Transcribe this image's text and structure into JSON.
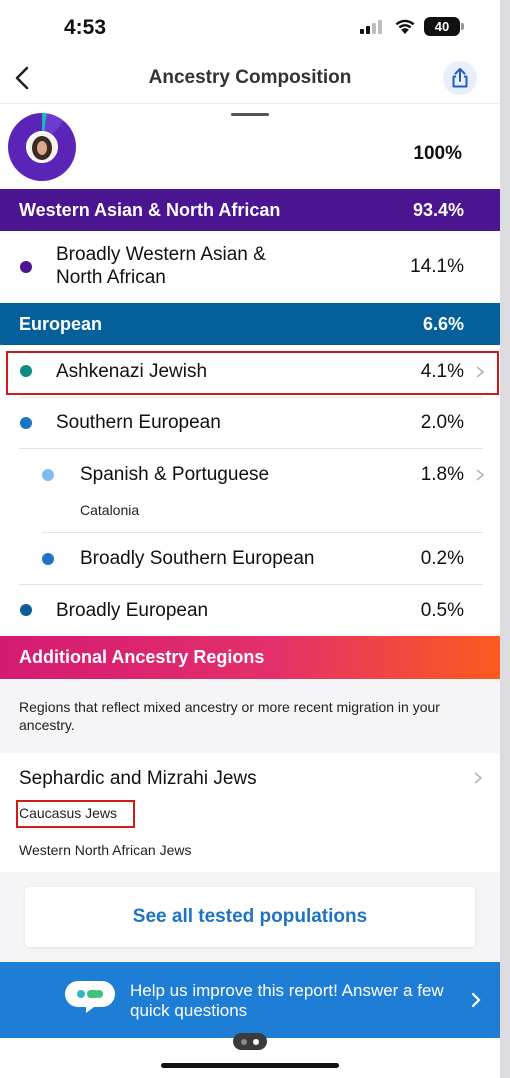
{
  "status": {
    "time": "4:53",
    "battery": "40"
  },
  "nav": {
    "title": "Ancestry Composition"
  },
  "total": {
    "percent": "100%"
  },
  "regions": {
    "wana": {
      "label": "Western Asian & North African",
      "percent": "93.4%"
    },
    "european": {
      "label": "European",
      "percent": "6.6%"
    },
    "additional": {
      "label": "Additional Ancestry Regions"
    }
  },
  "rows": {
    "broadly_wana": {
      "name_line1": "Broadly Western Asian &",
      "name_line2": "North African",
      "percent": "14.1%"
    },
    "ashkenazi": {
      "name": "Ashkenazi Jewish",
      "percent": "4.1%"
    },
    "southern_eu": {
      "name": "Southern European",
      "percent": "2.0%"
    },
    "spanish": {
      "name": "Spanish & Portuguese",
      "percent": "1.8%",
      "sub": "Catalonia"
    },
    "broadly_southern": {
      "name": "Broadly Southern European",
      "percent": "0.2%"
    },
    "broadly_eu": {
      "name": "Broadly European",
      "percent": "0.5%"
    }
  },
  "additional": {
    "description": "Regions that reflect mixed ancestry or more recent migration in your ancestry.",
    "group_title": "Sephardic and Mizrahi Jews",
    "items": [
      "Caucasus Jews",
      "Western North African Jews"
    ]
  },
  "see_all_label": "See all tested populations",
  "help": {
    "text": "Help us improve this report! Answer a few quick questions"
  },
  "colors": {
    "wana_header": "#4b1490",
    "european_header": "#045f9a",
    "dot_wana": "#4b1490",
    "dot_ashkenazi": "#0e8a80",
    "dot_southern": "#1f73c4",
    "dot_spanish": "#7fbbef",
    "dot_broadly_eu": "#0a5e9c",
    "link": "#1f73c4",
    "help_banner": "#1e7ed6"
  }
}
